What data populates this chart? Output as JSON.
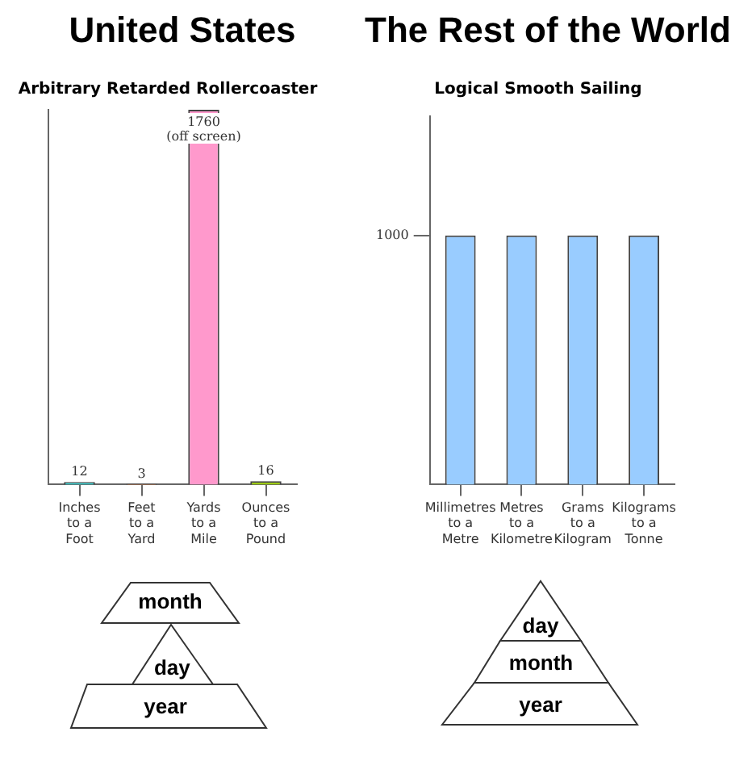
{
  "chart_data": [
    {
      "type": "bar",
      "title": "United States",
      "subtitle": "Arbitrary Retarded Rollercoaster",
      "categories": [
        "Inches\nto a\nFoot",
        "Feet\nto a\nYard",
        "Yards\nto a\nMile",
        "Ounces\nto a\nPound"
      ],
      "values": [
        12,
        3,
        1760,
        16
      ],
      "colors": [
        "#33cccc",
        "#ee6611",
        "#ff99cc",
        "#99cc00"
      ],
      "value_labels": [
        "12",
        "3",
        "1760\n(off screen)",
        "16"
      ],
      "ylim": [
        0,
        1760
      ],
      "tick_labels": "x",
      "annotations": [
        "month",
        "day",
        "year"
      ]
    },
    {
      "type": "bar",
      "title": "The Rest of the World",
      "subtitle": "Logical Smooth Sailing",
      "categories": [
        "Millimetres\nto a\nMetre",
        "Metres\nto a\nKilometre",
        "Grams\nto a\nKilogram",
        "Kilograms\nto a\nTonne"
      ],
      "values": [
        1000,
        1000,
        1000,
        1000
      ],
      "color": "#99ccff",
      "ylim": [
        0,
        1480
      ],
      "yticks": [
        1000
      ],
      "annotations": [
        "day",
        "month",
        "year"
      ]
    }
  ]
}
